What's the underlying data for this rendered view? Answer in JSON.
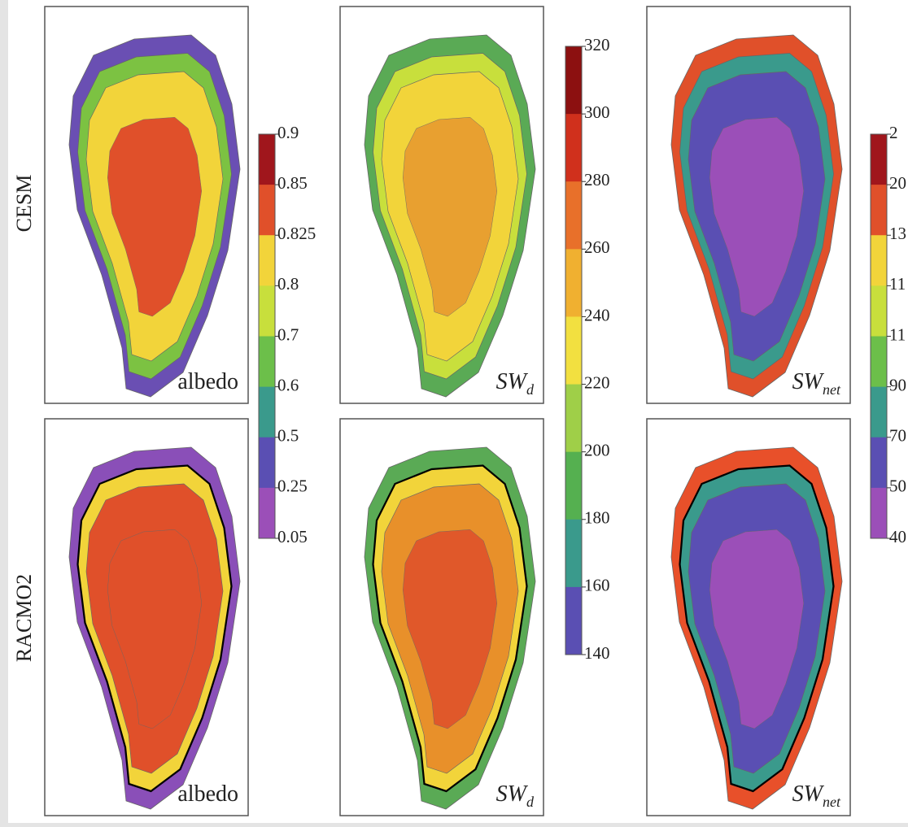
{
  "rows": [
    "CESM",
    "RACMO2"
  ],
  "panels": [
    {
      "label": "albedo"
    },
    {
      "label": "SW",
      "sub": "d"
    },
    {
      "label": "SW",
      "sub": "net"
    }
  ],
  "colorbars": [
    {
      "ticks": [
        "0.9",
        "0.85",
        "0.825",
        "0.8",
        "0.7",
        "0.6",
        "0.5",
        "0.25",
        "0.05"
      ]
    },
    {
      "ticks": [
        "320",
        "300",
        "280",
        "260",
        "240",
        "220",
        "200",
        "180",
        "160",
        "140"
      ]
    },
    {
      "ticks": [
        "2",
        "20",
        "13",
        "11",
        "11",
        "90",
        "70",
        "50",
        "40"
      ]
    }
  ]
}
